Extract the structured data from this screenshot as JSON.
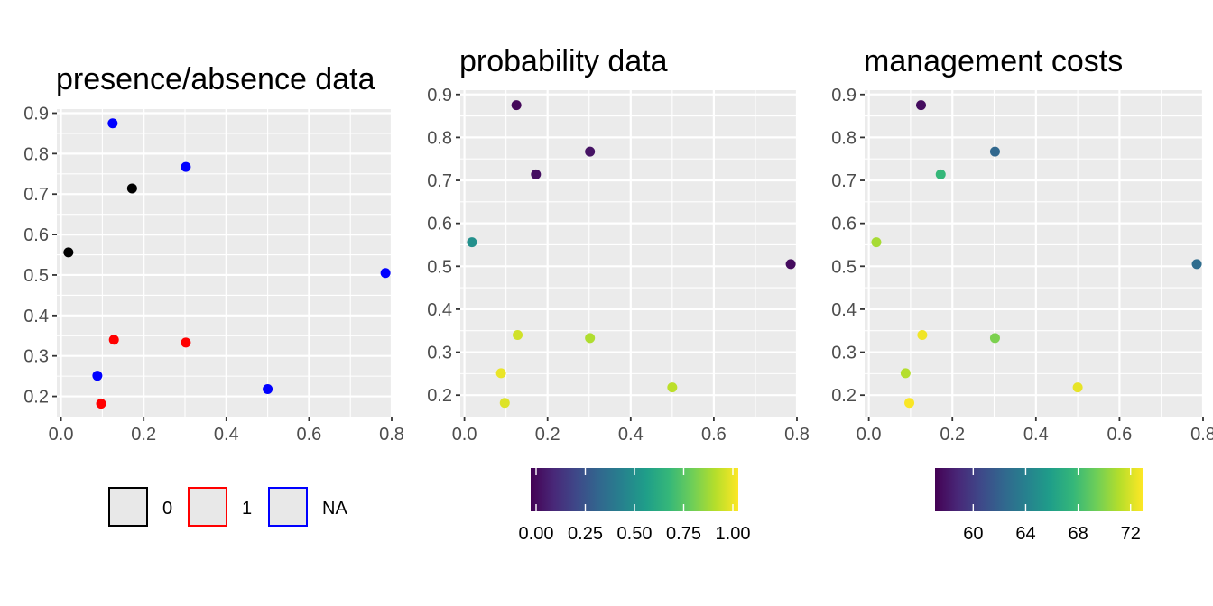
{
  "chart_data": [
    {
      "type": "scatter",
      "title": "presence/absence data",
      "xlabel": "",
      "ylabel": "",
      "xlim": [
        -0.01,
        0.8
      ],
      "ylim": [
        0.15,
        0.91
      ],
      "xticks": [
        "0.0",
        "0.2",
        "0.4",
        "0.6",
        "0.8"
      ],
      "yticks": [
        "0.2",
        "0.3",
        "0.4",
        "0.5",
        "0.6",
        "0.7",
        "0.8",
        "0.9"
      ],
      "grid": true,
      "legend": {
        "position": "bottom",
        "entries": [
          {
            "label": "0",
            "color": "#000000"
          },
          {
            "label": "1",
            "color": "#ff0000"
          },
          {
            "label": "NA",
            "color": "#0000ff"
          }
        ]
      },
      "points": [
        {
          "x": 0.125,
          "y": 0.875,
          "group": "NA"
        },
        {
          "x": 0.302,
          "y": 0.767,
          "group": "NA"
        },
        {
          "x": 0.172,
          "y": 0.714,
          "group": "0"
        },
        {
          "x": 0.018,
          "y": 0.556,
          "group": "0"
        },
        {
          "x": 0.785,
          "y": 0.505,
          "group": "NA"
        },
        {
          "x": 0.128,
          "y": 0.34,
          "group": "1"
        },
        {
          "x": 0.302,
          "y": 0.333,
          "group": "1"
        },
        {
          "x": 0.088,
          "y": 0.251,
          "group": "NA"
        },
        {
          "x": 0.5,
          "y": 0.218,
          "group": "NA"
        },
        {
          "x": 0.097,
          "y": 0.182,
          "group": "1"
        }
      ]
    },
    {
      "type": "scatter",
      "title": "probability data",
      "xlabel": "",
      "ylabel": "",
      "xlim": [
        -0.01,
        0.8
      ],
      "ylim": [
        0.15,
        0.91
      ],
      "xticks": [
        "0.0",
        "0.2",
        "0.4",
        "0.6",
        "0.8"
      ],
      "yticks": [
        "0.2",
        "0.3",
        "0.4",
        "0.5",
        "0.6",
        "0.7",
        "0.8",
        "0.9"
      ],
      "grid": true,
      "colorbar": {
        "position": "bottom",
        "min": 0,
        "max": 1,
        "ticks": [
          "0.00",
          "0.25",
          "0.50",
          "0.75",
          "1.00"
        ]
      },
      "points": [
        {
          "x": 0.125,
          "y": 0.875,
          "value": 0.02
        },
        {
          "x": 0.302,
          "y": 0.767,
          "value": 0.05
        },
        {
          "x": 0.172,
          "y": 0.714,
          "value": 0.04
        },
        {
          "x": 0.018,
          "y": 0.556,
          "value": 0.5
        },
        {
          "x": 0.785,
          "y": 0.505,
          "value": 0.03
        },
        {
          "x": 0.128,
          "y": 0.34,
          "value": 0.93
        },
        {
          "x": 0.302,
          "y": 0.333,
          "value": 0.88
        },
        {
          "x": 0.088,
          "y": 0.251,
          "value": 0.97
        },
        {
          "x": 0.5,
          "y": 0.218,
          "value": 0.9
        },
        {
          "x": 0.097,
          "y": 0.182,
          "value": 0.95
        }
      ]
    },
    {
      "type": "scatter",
      "title": "management costs",
      "xlabel": "",
      "ylabel": "",
      "xlim": [
        -0.01,
        0.8
      ],
      "ylim": [
        0.15,
        0.91
      ],
      "xticks": [
        "0.0",
        "0.2",
        "0.4",
        "0.6",
        "0.8"
      ],
      "yticks": [
        "0.2",
        "0.3",
        "0.4",
        "0.5",
        "0.6",
        "0.7",
        "0.8",
        "0.9"
      ],
      "grid": true,
      "colorbar": {
        "position": "bottom",
        "min": 57.5,
        "max": 72.5,
        "ticks": [
          "60",
          "64",
          "68",
          "72"
        ]
      },
      "points": [
        {
          "x": 0.125,
          "y": 0.875,
          "value": 58.0
        },
        {
          "x": 0.302,
          "y": 0.767,
          "value": 62.5
        },
        {
          "x": 0.172,
          "y": 0.714,
          "value": 67.5
        },
        {
          "x": 0.018,
          "y": 0.556,
          "value": 70.5
        },
        {
          "x": 0.785,
          "y": 0.505,
          "value": 62.8
        },
        {
          "x": 0.128,
          "y": 0.34,
          "value": 72.2
        },
        {
          "x": 0.302,
          "y": 0.333,
          "value": 69.5
        },
        {
          "x": 0.088,
          "y": 0.251,
          "value": 70.8
        },
        {
          "x": 0.5,
          "y": 0.218,
          "value": 72.0
        },
        {
          "x": 0.097,
          "y": 0.182,
          "value": 72.4
        }
      ]
    }
  ]
}
